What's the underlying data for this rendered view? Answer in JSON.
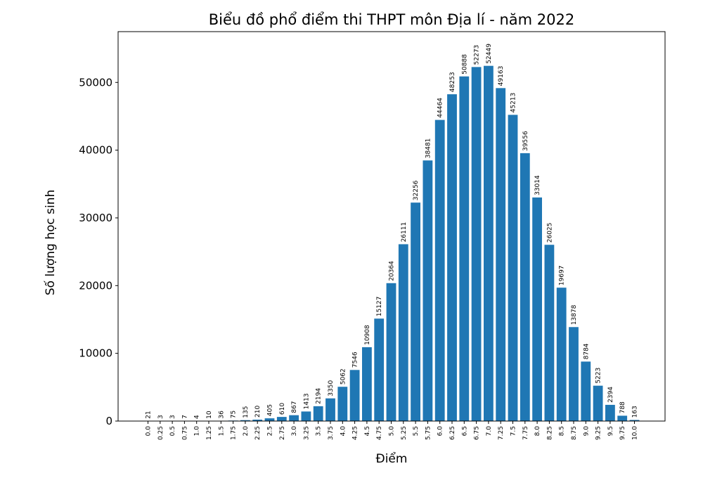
{
  "chart_data": {
    "type": "bar",
    "title": "Biểu đồ phổ điểm thi THPT môn Địa lí - năm 2022",
    "xlabel": "Điểm",
    "ylabel": "Số lượng học sinh",
    "categories": [
      "0.0",
      "0.25",
      "0.5",
      "0.75",
      "1.0",
      "1.25",
      "1.5",
      "1.75",
      "2.0",
      "2.25",
      "2.5",
      "2.75",
      "3.0",
      "3.25",
      "3.5",
      "3.75",
      "4.0",
      "4.25",
      "4.5",
      "4.75",
      "5.0",
      "5.25",
      "5.5",
      "5.75",
      "6.0",
      "6.25",
      "6.5",
      "6.75",
      "7.0",
      "7.25",
      "7.5",
      "7.75",
      "8.0",
      "8.25",
      "8.5",
      "8.75",
      "9.0",
      "9.25",
      "9.5",
      "9.75",
      "10.0"
    ],
    "values": [
      21,
      3,
      3,
      7,
      4,
      10,
      36,
      75,
      135,
      210,
      405,
      610,
      867,
      1413,
      2194,
      3350,
      5062,
      7546,
      10908,
      15127,
      20364,
      26111,
      32256,
      38481,
      44464,
      48253,
      50888,
      52273,
      52449,
      49163,
      45213,
      39556,
      33014,
      26025,
      19697,
      13878,
      8784,
      5223,
      2394,
      788,
      163
    ],
    "ylim": [
      0,
      57500
    ],
    "yticks": [
      0,
      10000,
      20000,
      30000,
      40000,
      50000
    ],
    "bar_color": "#1f77b4",
    "grid": false,
    "legend": "none"
  }
}
